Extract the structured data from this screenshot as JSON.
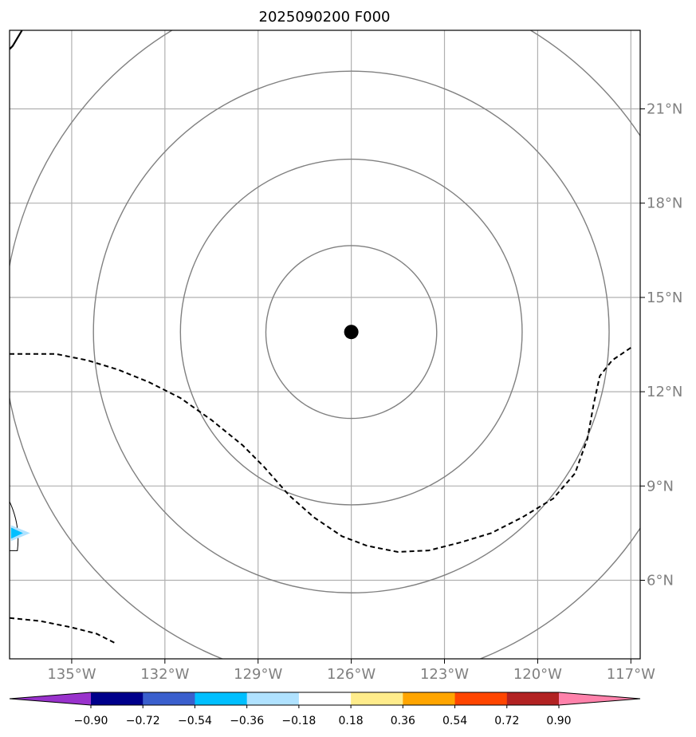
{
  "title": "2025090200 F000",
  "map": {
    "lon_range": [
      -137.0,
      -116.7
    ],
    "lat_range": [
      3.5,
      23.5
    ],
    "lon_ticks": [
      {
        "value": -135,
        "label": "135°W"
      },
      {
        "value": -132,
        "label": "132°W"
      },
      {
        "value": -129,
        "label": "129°W"
      },
      {
        "value": -126,
        "label": "126°W"
      },
      {
        "value": -123,
        "label": "123°W"
      },
      {
        "value": -120,
        "label": "120°W"
      },
      {
        "value": -117,
        "label": "117°W"
      }
    ],
    "lat_ticks": [
      {
        "value": 6,
        "label": "6°N"
      },
      {
        "value": 9,
        "label": "9°N"
      },
      {
        "value": 12,
        "label": "12°N"
      },
      {
        "value": 15,
        "label": "15°N"
      },
      {
        "value": 18,
        "label": "18°N"
      },
      {
        "value": 21,
        "label": "21°N"
      }
    ],
    "grid": true,
    "center": {
      "lon": -126.0,
      "lat": 13.9
    },
    "range_rings_deg": [
      2.75,
      5.5,
      8.3,
      11.2
    ],
    "dashed_contours": [
      [
        [
          -137.0,
          13.2
        ],
        [
          -135.5,
          13.2
        ],
        [
          -134.5,
          13.0
        ],
        [
          -133.5,
          12.7
        ],
        [
          -132.5,
          12.3
        ],
        [
          -131.5,
          11.8
        ],
        [
          -130.5,
          11.1
        ],
        [
          -129.5,
          10.3
        ],
        [
          -128.8,
          9.6
        ],
        [
          -128.0,
          8.7
        ],
        [
          -127.2,
          8.0
        ],
        [
          -126.3,
          7.4
        ],
        [
          -125.5,
          7.1
        ],
        [
          -124.5,
          6.9
        ],
        [
          -123.5,
          6.95
        ],
        [
          -122.5,
          7.2
        ],
        [
          -121.5,
          7.5
        ],
        [
          -120.5,
          8.0
        ],
        [
          -119.5,
          8.6
        ],
        [
          -118.8,
          9.4
        ],
        [
          -118.4,
          10.5
        ],
        [
          -118.2,
          11.6
        ],
        [
          -118.0,
          12.5
        ],
        [
          -117.6,
          13.0
        ],
        [
          -117.0,
          13.4
        ]
      ],
      [
        [
          -137.0,
          4.8
        ],
        [
          -136.0,
          4.7
        ],
        [
          -135.0,
          4.5
        ],
        [
          -134.2,
          4.3
        ],
        [
          -133.6,
          4.0
        ]
      ]
    ],
    "solid_contours": [
      [
        [
          -136.6,
          23.5
        ],
        [
          -136.9,
          23.0
        ],
        [
          -137.0,
          22.9
        ]
      ]
    ],
    "blue_feature": {
      "lon": -136.8,
      "lat": 7.5
    }
  },
  "colorbar": {
    "colors": [
      "#9932cc",
      "#00008b",
      "#3a5fcd",
      "#00bfff",
      "#b0e2ff",
      "#ffffff",
      "#ffec8b",
      "#ffa500",
      "#ff4500",
      "#b22222",
      "#ff82ab"
    ],
    "labels": [
      "−0.90",
      "−0.72",
      "−0.54",
      "−0.36",
      "−0.18",
      "0.18",
      "0.36",
      "0.54",
      "0.72",
      "0.90"
    ]
  }
}
